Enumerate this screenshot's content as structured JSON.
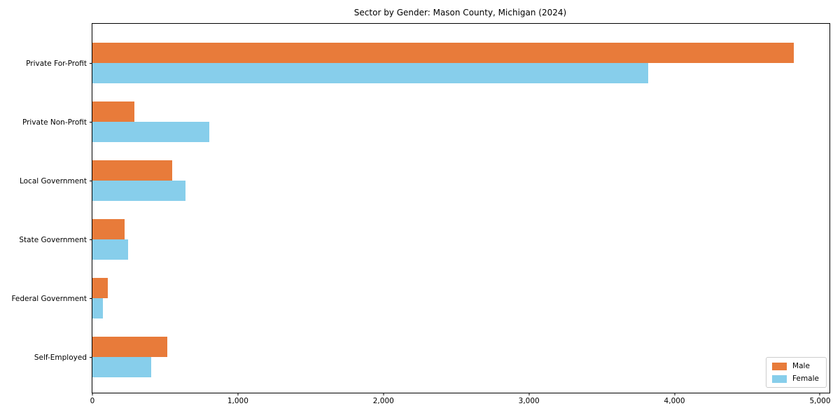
{
  "chart_data": {
    "type": "bar",
    "orientation": "horizontal",
    "title": "Sector by Gender: Mason County, Michigan (2024)",
    "categories": [
      "Private For-Profit",
      "Private Non-Profit",
      "Local Government",
      "State Government",
      "Federal Government",
      "Self-Employed"
    ],
    "series": [
      {
        "name": "Male",
        "color": "#E87B3A",
        "values": [
          4822,
          290,
          549,
          221,
          106,
          515
        ]
      },
      {
        "name": "Female",
        "color": "#87CEEB",
        "values": [
          3821,
          804,
          640,
          245,
          72,
          404
        ]
      }
    ],
    "xlabel": "",
    "ylabel": "",
    "xlim": [
      0,
      5065
    ],
    "xticks": [
      0,
      1000,
      2000,
      3000,
      4000,
      5000
    ],
    "xtick_labels": [
      "0",
      "1,000",
      "2,000",
      "3,000",
      "4,000",
      "5,000"
    ],
    "grid": false,
    "legend": {
      "position": "lower right",
      "entries": [
        "Male",
        "Female"
      ]
    }
  }
}
